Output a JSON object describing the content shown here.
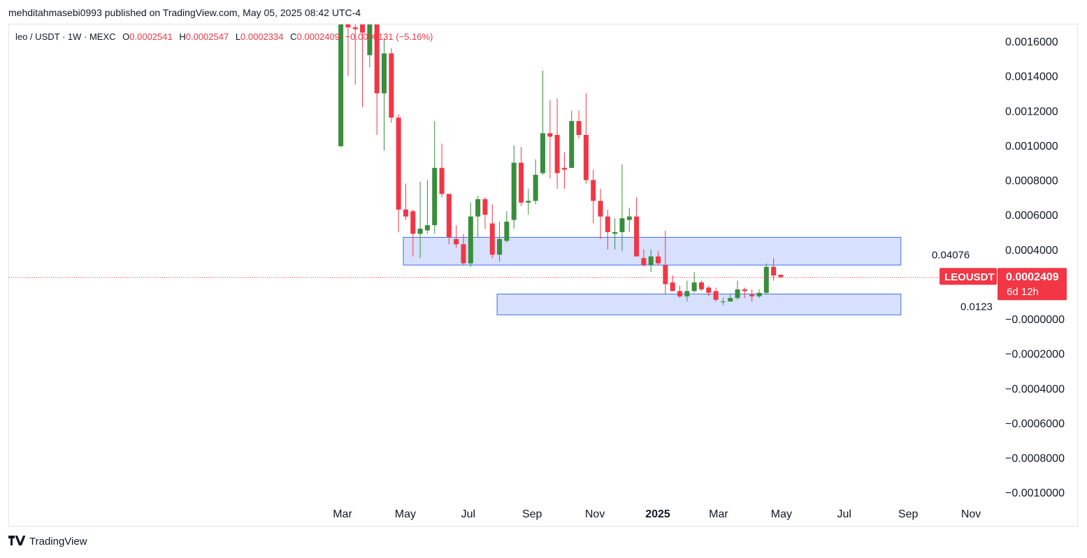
{
  "header": {
    "publisher_line": "mehditahmasebi0993 published on TradingView.com, May 05, 2025 08:42 UTC-4"
  },
  "legend": {
    "symbol": "leo / USDT · 1W · MEXC",
    "open_label": "O",
    "open_value": "0.0002541",
    "high_label": "H",
    "high_value": "0.0002547",
    "low_label": "L",
    "low_value": "0.0002334",
    "close_label": "C",
    "close_value": "0.0002409",
    "change_value": "−0.0000131 (−5.16%)"
  },
  "price_tag": {
    "ticker": "LEOUSDT",
    "price": "0.0002409",
    "countdown": "6d 12h"
  },
  "annotations": {
    "upper_zone_label": "0.04076",
    "lower_zone_label": "0.0123"
  },
  "footer": {
    "brand": "TradingView",
    "logo_icon": "tradingview-logo-icon"
  },
  "colors": {
    "up": "#388e3c",
    "down": "#f23645",
    "zone_fill": "#d3ddfc",
    "zone_stroke": "#3d6ee8",
    "price_line": "#f23645"
  },
  "chart_data": {
    "type": "candlestick",
    "title": "",
    "interval": "1W",
    "exchange": "MEXC",
    "y_axis_ticks": [
      "0.0016000",
      "0.0014000",
      "0.0012000",
      "0.0010000",
      "0.0008000",
      "0.0006000",
      "0.0004000",
      "−0.0000000",
      "−0.0002000",
      "−0.0004000",
      "−0.0006000",
      "−0.0008000",
      "−0.0010000"
    ],
    "y_axis_tick_values": [
      0.0016,
      0.0014,
      0.0012,
      0.001,
      0.0008,
      0.0006,
      0.0004,
      0.0,
      -0.0002,
      -0.0004,
      -0.0006,
      -0.0008,
      -0.001
    ],
    "ylim": [
      -0.00107,
      0.0017
    ],
    "x_axis_ticks": [
      "Mar",
      "May",
      "Jul",
      "Sep",
      "Nov",
      "2025",
      "Mar",
      "May",
      "Jul",
      "Sep",
      "Nov"
    ],
    "x_axis_tick_dates": [
      "2024-03-01",
      "2024-05-01",
      "2024-07-01",
      "2024-09-01",
      "2024-11-01",
      "2025-01-01",
      "2025-03-01",
      "2025-05-01",
      "2025-07-01",
      "2025-09-01",
      "2025-11-01"
    ],
    "x_axis_bold": [
      false,
      false,
      false,
      false,
      false,
      true,
      false,
      false,
      false,
      false,
      false
    ],
    "last_price": 0.0002409,
    "zones": [
      {
        "start": "2024-04-29",
        "end": "2025-08-25",
        "top": 0.00047,
        "bottom": 0.00031,
        "label": "0.04076"
      },
      {
        "start": "2024-07-29",
        "end": "2025-08-25",
        "top": 0.000143,
        "bottom": 2.3e-05,
        "label": "0.0123"
      }
    ],
    "candles": [
      {
        "date": "2024-02-26",
        "o": 0.000995,
        "h": 0.0017,
        "l": 0.00099,
        "c": 0.0017
      },
      {
        "date": "2024-03-04",
        "o": 0.0017,
        "h": 0.00175,
        "l": 0.0014,
        "c": 0.00168
      },
      {
        "date": "2024-03-11",
        "o": 0.00168,
        "h": 0.0017,
        "l": 0.00135,
        "c": 0.00167
      },
      {
        "date": "2024-03-18",
        "o": 0.0017,
        "h": 0.00175,
        "l": 0.00122,
        "c": 0.00165
      },
      {
        "date": "2024-03-25",
        "o": 0.00152,
        "h": 0.00175,
        "l": 0.00145,
        "c": 0.0017
      },
      {
        "date": "2024-04-01",
        "o": 0.0017,
        "h": 0.00175,
        "l": 0.00106,
        "c": 0.0013
      },
      {
        "date": "2024-04-08",
        "o": 0.0013,
        "h": 0.00162,
        "l": 0.00097,
        "c": 0.00153
      },
      {
        "date": "2024-04-15",
        "o": 0.00153,
        "h": 0.00156,
        "l": 0.00113,
        "c": 0.00116
      },
      {
        "date": "2024-04-22",
        "o": 0.00116,
        "h": 0.00118,
        "l": 0.0005,
        "c": 0.00063
      },
      {
        "date": "2024-04-29",
        "o": 0.00063,
        "h": 0.00078,
        "l": 0.00057,
        "c": 0.00059
      },
      {
        "date": "2024-05-06",
        "o": 0.00062,
        "h": 0.00063,
        "l": 0.00036,
        "c": 0.00049
      },
      {
        "date": "2024-05-13",
        "o": 0.00049,
        "h": 0.00079,
        "l": 0.00035,
        "c": 0.00052
      },
      {
        "date": "2024-05-20",
        "o": 0.00051,
        "h": 0.0008,
        "l": 0.00049,
        "c": 0.00054
      },
      {
        "date": "2024-05-27",
        "o": 0.00054,
        "h": 0.00114,
        "l": 0.00049,
        "c": 0.00087
      },
      {
        "date": "2024-06-03",
        "o": 0.00087,
        "h": 0.00101,
        "l": 0.0007,
        "c": 0.00072
      },
      {
        "date": "2024-06-10",
        "o": 0.00072,
        "h": 0.00072,
        "l": 0.00043,
        "c": 0.00047
      },
      {
        "date": "2024-06-17",
        "o": 0.00046,
        "h": 0.00054,
        "l": 0.00041,
        "c": 0.00043
      },
      {
        "date": "2024-06-24",
        "o": 0.00043,
        "h": 0.00049,
        "l": 0.00031,
        "c": 0.00032
      },
      {
        "date": "2024-07-01",
        "o": 0.00032,
        "h": 0.00067,
        "l": 0.0003,
        "c": 0.00059
      },
      {
        "date": "2024-07-08",
        "o": 0.00059,
        "h": 0.00071,
        "l": 0.00047,
        "c": 0.00069
      },
      {
        "date": "2024-07-15",
        "o": 0.00069,
        "h": 0.0007,
        "l": 0.00052,
        "c": 0.0006
      },
      {
        "date": "2024-07-22",
        "o": 0.00055,
        "h": 0.00066,
        "l": 0.00035,
        "c": 0.00037
      },
      {
        "date": "2024-07-29",
        "o": 0.00037,
        "h": 0.00056,
        "l": 0.00033,
        "c": 0.00046
      },
      {
        "date": "2024-08-05",
        "o": 0.00045,
        "h": 0.00062,
        "l": 0.00044,
        "c": 0.00056
      },
      {
        "date": "2024-08-12",
        "o": 0.00057,
        "h": 0.001,
        "l": 0.00052,
        "c": 0.0009
      },
      {
        "date": "2024-08-19",
        "o": 0.0009,
        "h": 0.00099,
        "l": 0.00065,
        "c": 0.00067
      },
      {
        "date": "2024-08-26",
        "o": 0.00067,
        "h": 0.00075,
        "l": 0.0006,
        "c": 0.00068
      },
      {
        "date": "2024-09-02",
        "o": 0.00068,
        "h": 0.00092,
        "l": 0.00066,
        "c": 0.00083
      },
      {
        "date": "2024-09-09",
        "o": 0.00084,
        "h": 0.00143,
        "l": 0.00083,
        "c": 0.00107
      },
      {
        "date": "2024-09-16",
        "o": 0.00107,
        "h": 0.00126,
        "l": 0.00081,
        "c": 0.00105
      },
      {
        "date": "2024-09-23",
        "o": 0.00106,
        "h": 0.00127,
        "l": 0.00075,
        "c": 0.00084
      },
      {
        "date": "2024-09-30",
        "o": 0.00087,
        "h": 0.00096,
        "l": 0.00075,
        "c": 0.00086
      },
      {
        "date": "2024-10-07",
        "o": 0.00087,
        "h": 0.0012,
        "l": 0.00087,
        "c": 0.00114
      },
      {
        "date": "2024-10-14",
        "o": 0.00114,
        "h": 0.0012,
        "l": 0.00104,
        "c": 0.00106
      },
      {
        "date": "2024-10-21",
        "o": 0.00106,
        "h": 0.0013,
        "l": 0.00078,
        "c": 0.0008
      },
      {
        "date": "2024-10-28",
        "o": 0.0008,
        "h": 0.00086,
        "l": 0.00055,
        "c": 0.00068
      },
      {
        "date": "2024-11-04",
        "o": 0.00068,
        "h": 0.00075,
        "l": 0.00046,
        "c": 0.00059
      },
      {
        "date": "2024-11-11",
        "o": 0.00059,
        "h": 0.00063,
        "l": 0.0004,
        "c": 0.0005
      },
      {
        "date": "2024-11-18",
        "o": 0.00049,
        "h": 0.00058,
        "l": 0.0004,
        "c": 0.0005
      },
      {
        "date": "2024-11-25",
        "o": 0.0005,
        "h": 0.00089,
        "l": 0.00039,
        "c": 0.00058
      },
      {
        "date": "2024-12-02",
        "o": 0.00057,
        "h": 0.00064,
        "l": 0.0005,
        "c": 0.00059
      },
      {
        "date": "2024-12-09",
        "o": 0.00059,
        "h": 0.0007,
        "l": 0.00036,
        "c": 0.00036
      },
      {
        "date": "2024-12-16",
        "o": 0.00035,
        "h": 0.0004,
        "l": 0.0003,
        "c": 0.00031
      },
      {
        "date": "2024-12-23",
        "o": 0.00031,
        "h": 0.0004,
        "l": 0.00027,
        "c": 0.00036
      },
      {
        "date": "2024-12-30",
        "o": 0.00036,
        "h": 0.00039,
        "l": 0.00031,
        "c": 0.00032
      },
      {
        "date": "2025-01-06",
        "o": 0.00031,
        "h": 0.00051,
        "l": 0.00014,
        "c": 0.0002
      },
      {
        "date": "2025-01-13",
        "o": 0.00021,
        "h": 0.00025,
        "l": 0.00016,
        "c": 0.00016
      },
      {
        "date": "2025-01-20",
        "o": 0.00016,
        "h": 0.00019,
        "l": 0.00012,
        "c": 0.00013
      },
      {
        "date": "2025-01-27",
        "o": 0.00013,
        "h": 0.00022,
        "l": 0.0001,
        "c": 0.00016
      },
      {
        "date": "2025-02-03",
        "o": 0.00016,
        "h": 0.00027,
        "l": 0.00015,
        "c": 0.00021
      },
      {
        "date": "2025-02-10",
        "o": 0.00021,
        "h": 0.00022,
        "l": 0.00016,
        "c": 0.00017
      },
      {
        "date": "2025-02-17",
        "o": 0.00018,
        "h": 0.00019,
        "l": 0.00013,
        "c": 0.00015
      },
      {
        "date": "2025-02-24",
        "o": 0.00016,
        "h": 0.00018,
        "l": 0.0001,
        "c": 0.00011
      },
      {
        "date": "2025-03-03",
        "o": 0.0001,
        "h": 0.00012,
        "l": 8e-05,
        "c": 0.0001
      },
      {
        "date": "2025-03-10",
        "o": 0.0001,
        "h": 0.00014,
        "l": 0.0001,
        "c": 0.00012
      },
      {
        "date": "2025-03-17",
        "o": 0.00012,
        "h": 0.00022,
        "l": 0.00011,
        "c": 0.00017
      },
      {
        "date": "2025-03-24",
        "o": 0.00017,
        "h": 0.00018,
        "l": 0.00012,
        "c": 0.00016
      },
      {
        "date": "2025-03-31",
        "o": 0.00014,
        "h": 0.00017,
        "l": 0.0001,
        "c": 0.00013
      },
      {
        "date": "2025-04-07",
        "o": 0.00013,
        "h": 0.00017,
        "l": 0.00012,
        "c": 0.00015
      },
      {
        "date": "2025-04-14",
        "o": 0.00015,
        "h": 0.00032,
        "l": 0.00014,
        "c": 0.0003
      },
      {
        "date": "2025-04-21",
        "o": 0.0003,
        "h": 0.00035,
        "l": 0.00022,
        "c": 0.00025
      },
      {
        "date": "2025-04-28",
        "o": 0.0002541,
        "h": 0.0002547,
        "l": 0.0002334,
        "c": 0.0002409
      }
    ]
  }
}
